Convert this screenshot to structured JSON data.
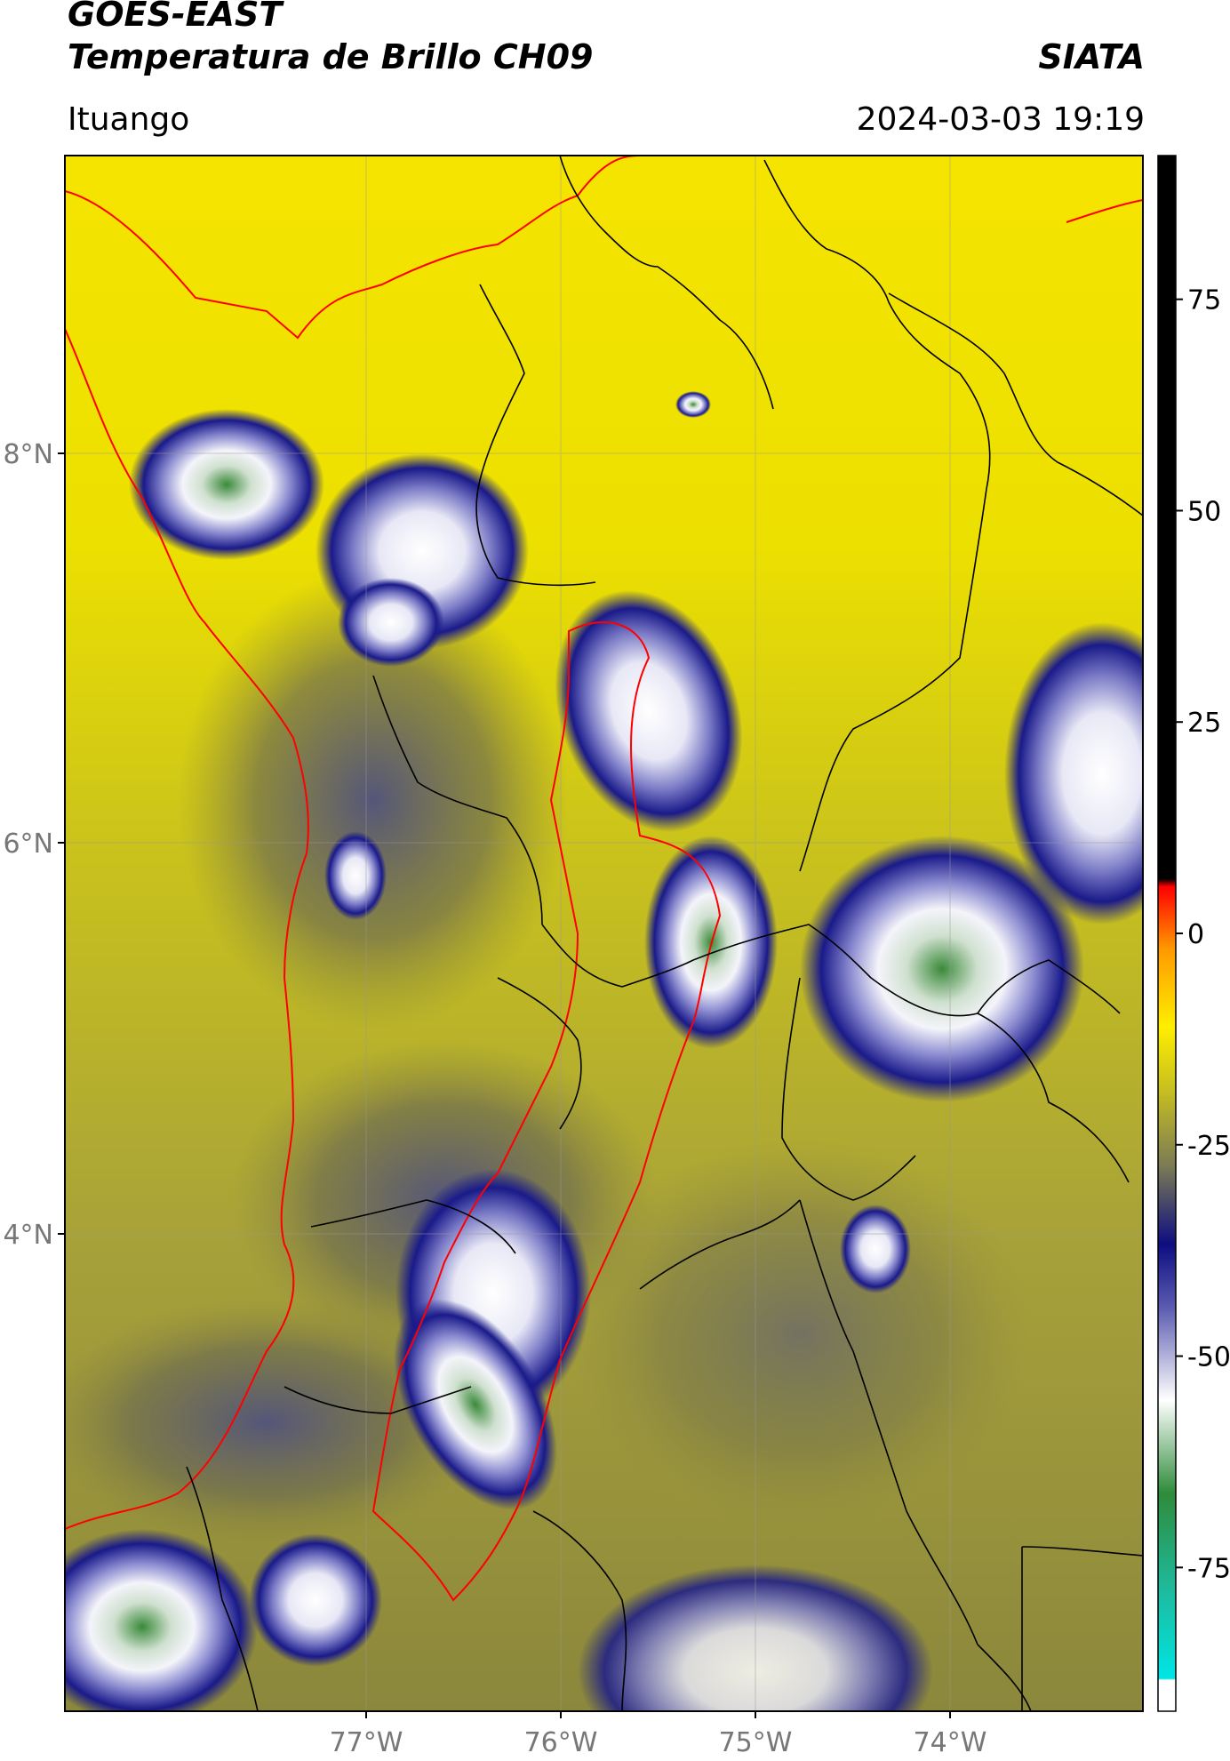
{
  "header": {
    "title_line1": "GOES-EAST",
    "title_line2": "Temperatura de Brillo CH09",
    "org": "SIATA",
    "region": "Ituango",
    "datetime": "2024-03-03 19:19"
  },
  "map": {
    "lat_labels": [
      "8°N",
      "6°N",
      "4°N"
    ],
    "lon_labels": [
      "77°W",
      "76°W",
      "75°W",
      "74°W"
    ],
    "colors": {
      "warm": "#f2e600",
      "mid": "#b8b23a",
      "olive": "#7f7c3e",
      "cold_blue": "#1a1a8a",
      "very_cold": "#f0f0f8",
      "green": "#3a8a3a",
      "border_red": "#ff0000",
      "border_black": "#000000"
    }
  },
  "colorbar": {
    "ticks": [
      "75",
      "50",
      "25",
      "0",
      "-25",
      "-50",
      "-75"
    ],
    "tick_values": [
      75,
      50,
      25,
      0,
      -25,
      -50,
      -75
    ],
    "range": [
      -92,
      92
    ]
  }
}
